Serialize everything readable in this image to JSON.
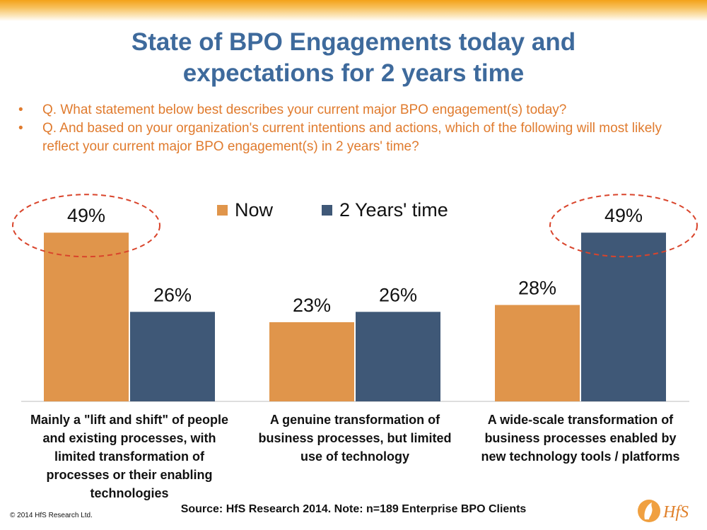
{
  "slide": {
    "title_line1": "State of BPO Engagements today and",
    "title_line2": "expectations for 2 years time",
    "questions": [
      "Q. What statement below best describes your current major BPO engagement(s) today?",
      "Q. And based on your organization's current intentions and actions, which of the following will most likely reflect your current major BPO engagement(s) in 2 years' time?"
    ],
    "bullet": "•",
    "source": "Source: HfS Research 2014.  Note: n=189 Enterprise BPO Clients",
    "copyright": "© 2014 HfS Research Ltd.",
    "logo_text": "HfS"
  },
  "chart_data": {
    "type": "bar",
    "categories": [
      "Mainly a \"lift and shift\" of people and existing processes, with limited transformation of processes or their enabling technologies",
      "A genuine transformation of business processes, but limited use of technology",
      "A wide-scale transformation of business processes enabled by new technology tools / platforms"
    ],
    "category_lines": [
      [
        "Mainly a \"lift and shift\" of people",
        "and existing processes, with",
        "limited transformation of",
        "processes or their enabling",
        "technologies"
      ],
      [
        "A genuine transformation of",
        "business processes, but limited",
        "use of technology"
      ],
      [
        "A wide-scale transformation of",
        "business processes enabled by",
        "new technology tools / platforms"
      ]
    ],
    "series": [
      {
        "name": "Now",
        "values": [
          49,
          23,
          28
        ],
        "color": "#e0954b"
      },
      {
        "name": "2 Years' time",
        "values": [
          26,
          26,
          49
        ],
        "color": "#3f5877"
      }
    ],
    "data_labels": [
      [
        "49%",
        "23%",
        "28%"
      ],
      [
        "26%",
        "26%",
        "49%"
      ]
    ],
    "highlight_color": "#d9442b",
    "highlights": [
      {
        "series": 0,
        "category": 0
      },
      {
        "series": 1,
        "category": 2
      }
    ],
    "ylim": [
      0,
      55
    ],
    "legend_position": "top",
    "grid": false
  }
}
